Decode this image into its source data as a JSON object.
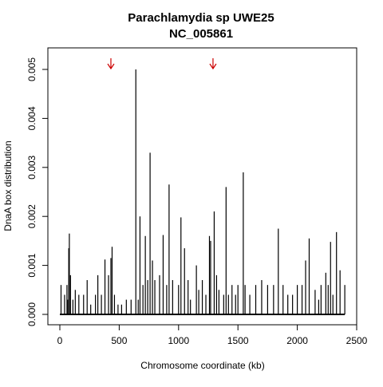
{
  "chart_data": {
    "type": "bar",
    "title": "Parachlamydia sp UWE25",
    "subtitle": "NC_005861",
    "xlabel": "Chromosome coordinate (kb)",
    "ylabel": "DnaA box distribution",
    "xlim": [
      0,
      2500
    ],
    "ylim": [
      0,
      0.005
    ],
    "x_ticks": [
      0,
      500,
      1000,
      1500,
      2000,
      2500
    ],
    "x_tick_labels": [
      "0",
      "500",
      "1000",
      "1500",
      "2000",
      "2500"
    ],
    "y_ticks": [
      0,
      0.001,
      0.002,
      0.003,
      0.004,
      0.005
    ],
    "y_tick_labels": [
      "0.000",
      "0.001",
      "0.002",
      "0.003",
      "0.004",
      "0.005"
    ],
    "series": [
      {
        "x": [
          10,
          40,
          60,
          65,
          75,
          80,
          90,
          110,
          130,
          160,
          200,
          230,
          260,
          300,
          320,
          350,
          380,
          410,
          430,
          440,
          460,
          490,
          520,
          560,
          600,
          640,
          660,
          675,
          700,
          720,
          740,
          760,
          780,
          800,
          840,
          870,
          900,
          920,
          950,
          1000,
          1020,
          1050,
          1080,
          1100,
          1150,
          1170,
          1200,
          1230,
          1260,
          1270,
          1300,
          1320,
          1340,
          1380,
          1400,
          1420,
          1450,
          1480,
          1500,
          1545,
          1560,
          1600,
          1650,
          1700,
          1750,
          1800,
          1840,
          1880,
          1920,
          1960,
          2000,
          2040,
          2070,
          2100,
          2150,
          2180,
          2200,
          2240,
          2260,
          2280,
          2300,
          2330,
          2360,
          2400
        ],
        "values": [
          0.0006,
          0.0004,
          0.0006,
          0.0003,
          0.00135,
          0.00165,
          0.0008,
          0.0003,
          0.0005,
          0.0004,
          0.0004,
          0.0007,
          0.0002,
          0.0004,
          0.0008,
          0.0004,
          0.00112,
          0.0008,
          0.00115,
          0.00138,
          0.0004,
          0.0002,
          0.0002,
          0.0003,
          0.0003,
          0.005,
          0.0003,
          0.002,
          0.0006,
          0.0016,
          0.0007,
          0.0033,
          0.0011,
          0.0007,
          0.0008,
          0.00162,
          0.0006,
          0.00265,
          0.0007,
          0.0006,
          0.00198,
          0.00135,
          0.0007,
          0.0003,
          0.001,
          0.0005,
          0.0007,
          0.0004,
          0.0016,
          0.0015,
          0.0021,
          0.0008,
          0.0005,
          0.0004,
          0.0026,
          0.0004,
          0.0006,
          0.0004,
          0.0006,
          0.0029,
          0.0006,
          0.0004,
          0.0006,
          0.0007,
          0.0006,
          0.0006,
          0.00175,
          0.0006,
          0.0004,
          0.0004,
          0.0006,
          0.0006,
          0.0011,
          0.00155,
          0.0005,
          0.0003,
          0.0006,
          0.00085,
          0.0006,
          0.00148,
          0.0004,
          0.00168,
          0.0009,
          0.0006
        ]
      }
    ],
    "annotations": [
      {
        "type": "arrow",
        "x": 430,
        "color": "#cc0000"
      },
      {
        "type": "arrow",
        "x": 1290,
        "color": "#cc0000"
      }
    ],
    "grid": false,
    "bar_color": "#000000",
    "axis_color": "#000000"
  }
}
